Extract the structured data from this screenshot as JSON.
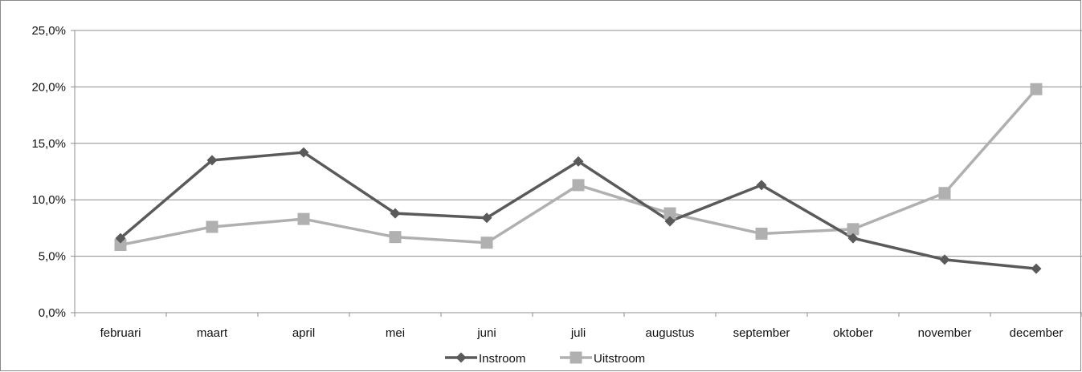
{
  "chart_data": {
    "type": "line",
    "categories": [
      "februari",
      "maart",
      "april",
      "mei",
      "juni",
      "juli",
      "augustus",
      "september",
      "oktober",
      "november",
      "december"
    ],
    "series": [
      {
        "name": "Instroom",
        "values": [
          6.6,
          13.5,
          14.2,
          8.8,
          8.4,
          13.4,
          8.1,
          11.3,
          6.6,
          4.7,
          3.9
        ],
        "color": "#5a5a5a",
        "marker": "diamond"
      },
      {
        "name": "Uitstroom",
        "values": [
          6.0,
          7.6,
          8.3,
          6.7,
          6.2,
          11.3,
          8.8,
          7.0,
          7.4,
          10.6,
          19.8
        ],
        "color": "#b0b0b0",
        "marker": "square"
      }
    ],
    "yticks": [
      "0,0%",
      "5,0%",
      "10,0%",
      "15,0%",
      "20,0%",
      "25,0%"
    ],
    "ylim": [
      0,
      25
    ],
    "grid": true,
    "legend_position": "bottom"
  }
}
